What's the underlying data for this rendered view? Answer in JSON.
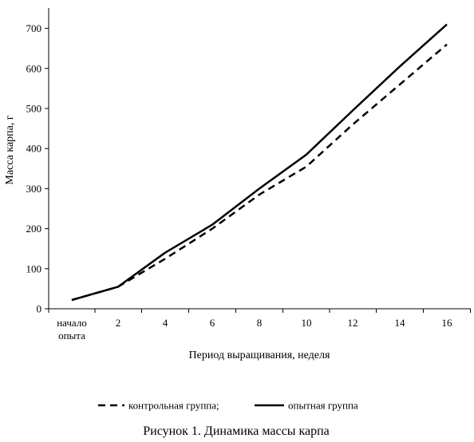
{
  "chart_data": {
    "type": "line",
    "title": "",
    "caption": "Рисунок 1. Динамика массы карпа",
    "xlabel": "Период выращивания, неделя",
    "ylabel": "Масса карпа, г",
    "ylim": [
      0,
      750
    ],
    "yticks": [
      0,
      100,
      200,
      300,
      400,
      500,
      600,
      700
    ],
    "categories": [
      {
        "label_lines": [
          "начало",
          "опыта"
        ]
      },
      {
        "label_lines": [
          "2"
        ]
      },
      {
        "label_lines": [
          "4"
        ]
      },
      {
        "label_lines": [
          "6"
        ]
      },
      {
        "label_lines": [
          "8"
        ]
      },
      {
        "label_lines": [
          "10"
        ]
      },
      {
        "label_lines": [
          "12"
        ]
      },
      {
        "label_lines": [
          "14"
        ]
      },
      {
        "label_lines": [
          "16"
        ]
      }
    ],
    "series": [
      {
        "name": "контрольная группа;",
        "style": "dashed",
        "color": "#000000",
        "values": [
          22,
          55,
          125,
          200,
          285,
          355,
          460,
          560,
          660
        ]
      },
      {
        "name": "опытная группа",
        "style": "solid",
        "color": "#000000",
        "values": [
          22,
          55,
          140,
          210,
          300,
          385,
          495,
          605,
          710
        ]
      }
    ],
    "grid": false,
    "legend_position": "bottom"
  }
}
